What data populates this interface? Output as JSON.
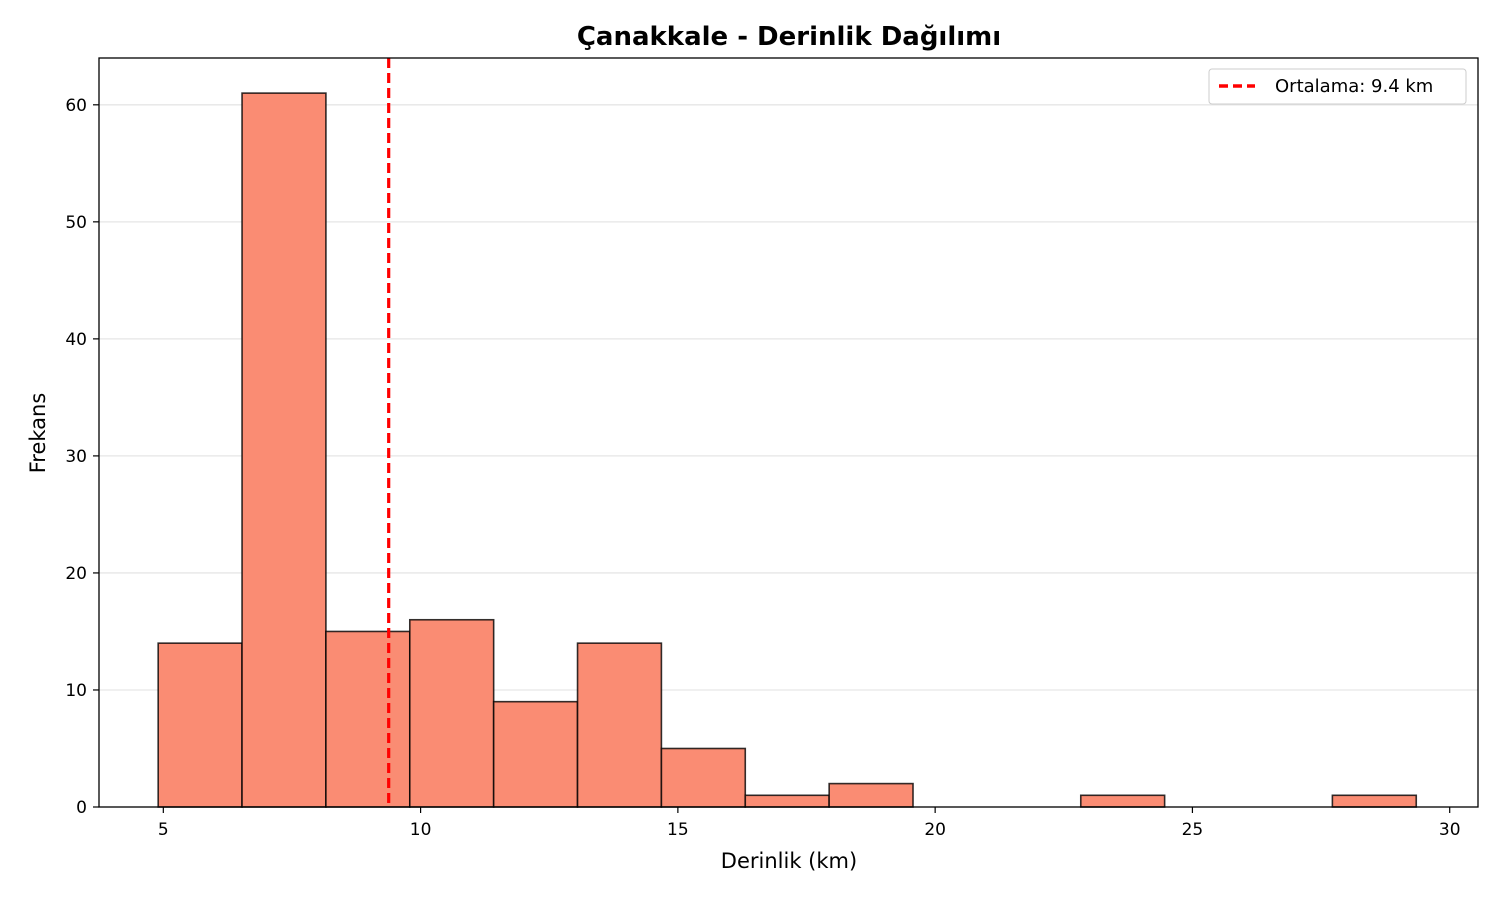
{
  "chart_data": {
    "type": "histogram",
    "title": "Çanakkale - Derinlik Dağılımı",
    "xlabel": "Derinlik (km)",
    "ylabel": "Frekans",
    "xlim": [
      3.75,
      30.55
    ],
    "ylim": [
      0,
      64
    ],
    "xticks": [
      5,
      10,
      15,
      20,
      25,
      30
    ],
    "yticks": [
      0,
      10,
      20,
      30,
      40,
      50,
      60
    ],
    "grid": "y",
    "bins": [
      {
        "x0": 4.9,
        "x1": 6.53,
        "count": 14
      },
      {
        "x0": 6.53,
        "x1": 8.16,
        "count": 61
      },
      {
        "x0": 8.16,
        "x1": 9.79,
        "count": 15
      },
      {
        "x0": 9.79,
        "x1": 11.42,
        "count": 16
      },
      {
        "x0": 11.42,
        "x1": 13.05,
        "count": 9
      },
      {
        "x0": 13.05,
        "x1": 14.68,
        "count": 14
      },
      {
        "x0": 14.68,
        "x1": 16.31,
        "count": 5
      },
      {
        "x0": 16.31,
        "x1": 17.94,
        "count": 1
      },
      {
        "x0": 17.94,
        "x1": 19.57,
        "count": 2
      },
      {
        "x0": 19.57,
        "x1": 21.2,
        "count": 0
      },
      {
        "x0": 21.2,
        "x1": 22.83,
        "count": 0
      },
      {
        "x0": 22.83,
        "x1": 24.46,
        "count": 1
      },
      {
        "x0": 24.46,
        "x1": 26.09,
        "count": 0
      },
      {
        "x0": 26.09,
        "x1": 27.72,
        "count": 0
      },
      {
        "x0": 27.72,
        "x1": 29.35,
        "count": 1
      }
    ],
    "mean_line": {
      "value": 9.38,
      "label": "Ortalama: 9.4 km",
      "color": "#ff0000"
    },
    "bar_color": "#fa8c73",
    "bar_edge_color": "#000000",
    "legend_position": "top-right"
  }
}
